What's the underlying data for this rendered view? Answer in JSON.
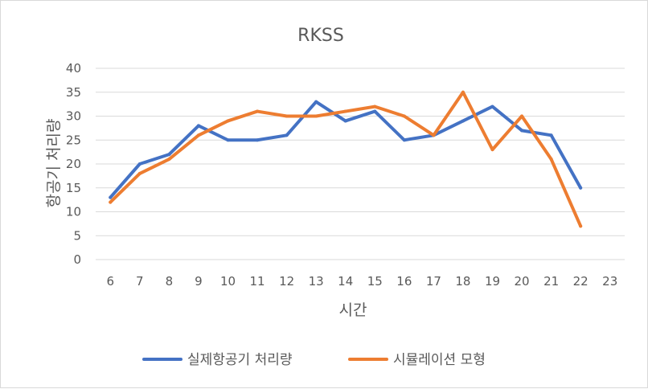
{
  "chart_data": {
    "type": "line",
    "title": "RKSS",
    "xlabel": "시간",
    "ylabel": "항공기 처리량",
    "categories": [
      "6",
      "7",
      "8",
      "9",
      "10",
      "11",
      "12",
      "13",
      "14",
      "15",
      "16",
      "17",
      "18",
      "19",
      "20",
      "21",
      "22",
      "23"
    ],
    "ylim": [
      0,
      40
    ],
    "yticks": [
      0,
      5,
      10,
      15,
      20,
      25,
      30,
      35,
      40
    ],
    "grid": true,
    "legend_position": "bottom",
    "series": [
      {
        "name": "실제항공기 처리량",
        "color": "#4472c4",
        "values": [
          13,
          20,
          22,
          28,
          25,
          25,
          26,
          33,
          29,
          31,
          25,
          26,
          29,
          32,
          27,
          26,
          15,
          null
        ]
      },
      {
        "name": "시뮬레이션 모형",
        "color": "#ed7d31",
        "values": [
          12,
          18,
          21,
          26,
          29,
          31,
          30,
          30,
          31,
          32,
          30,
          26,
          35,
          23,
          30,
          21,
          7,
          null
        ]
      }
    ]
  }
}
